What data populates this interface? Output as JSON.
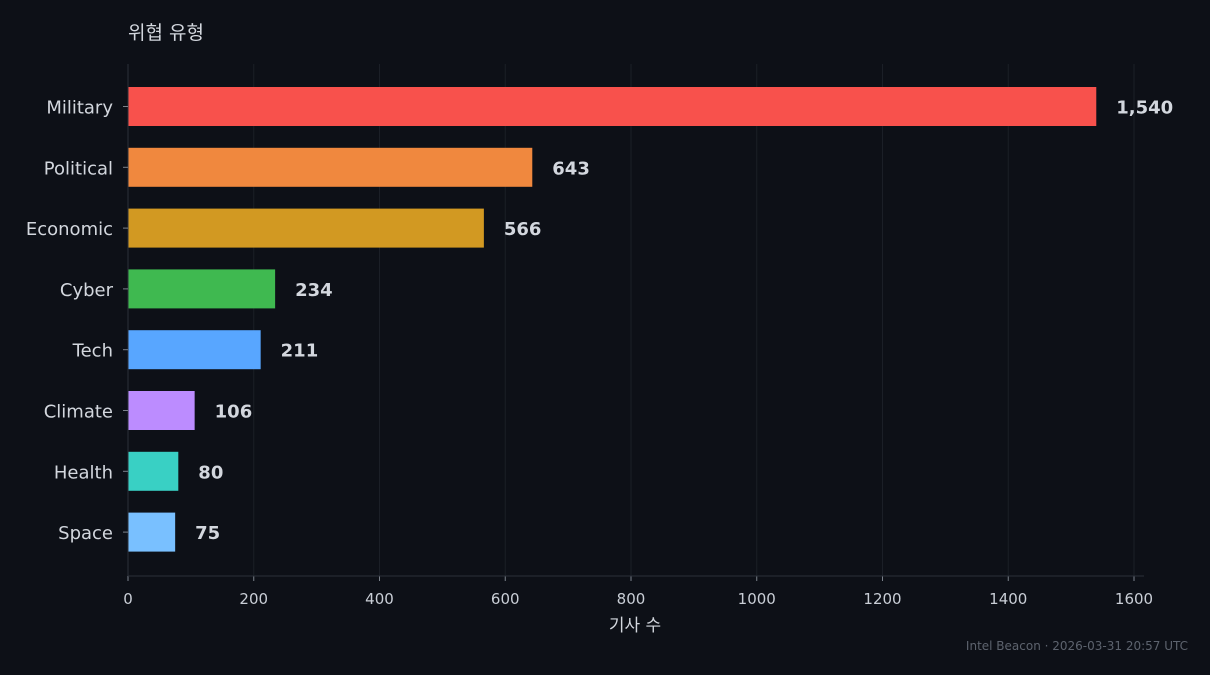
{
  "chart_data": {
    "type": "bar",
    "orientation": "horizontal",
    "title": "위협 유형",
    "xlabel": "기사 수",
    "ylabel": "",
    "categories": [
      "Military",
      "Political",
      "Economic",
      "Cyber",
      "Tech",
      "Climate",
      "Health",
      "Space"
    ],
    "values": [
      1540,
      643,
      566,
      234,
      211,
      106,
      80,
      75
    ],
    "value_labels": [
      "1,540",
      "643",
      "566",
      "234",
      "211",
      "106",
      "80",
      "75"
    ],
    "colors": [
      "#f8514c",
      "#f0883e",
      "#d29922",
      "#3fb950",
      "#58a6ff",
      "#bc8cff",
      "#39d0c4",
      "#79c0ff"
    ],
    "xlim": [
      0,
      1600
    ],
    "xticks": [
      0,
      200,
      400,
      600,
      800,
      1000,
      1200,
      1400,
      1600
    ],
    "grid": true,
    "legend": "none"
  },
  "footer": "Intel Beacon · 2026-03-31 20:57 UTC"
}
